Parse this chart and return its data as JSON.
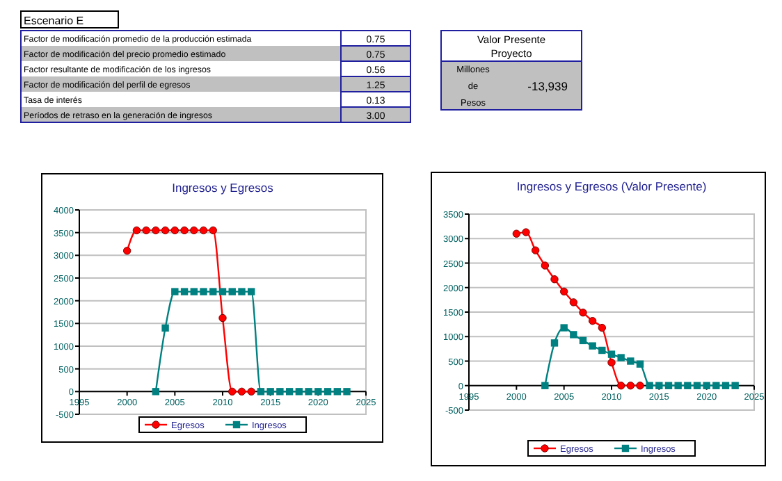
{
  "chart_data": [
    {
      "type": "other",
      "title": "Escenario E",
      "annotations": [
        "Factor de modificación promedio de la producción estimada",
        "0.75",
        "Factor de modificación del precio promedio estimado",
        "0.75",
        "Factor resultante de modificación de los ingresos",
        "0.56",
        "Factor de modificación del perfil de egresos",
        "1.25",
        "Tasa de interés",
        "0.13",
        "Períodos de retraso en la generación de ingresos",
        "3.00",
        "Valor Presente Proyecto",
        "Millones de Pesos",
        "-13,939"
      ]
    },
    {
      "type": "line",
      "title": "Ingresos y Egresos",
      "xlim": [
        1995,
        2025
      ],
      "xticks": [
        1995,
        2000,
        2005,
        2010,
        2015,
        2020,
        2025
      ],
      "ylim": [
        -500,
        4000
      ],
      "yticks": [
        -500,
        0,
        500,
        1000,
        1500,
        2000,
        2500,
        3000,
        3500,
        4000
      ],
      "grid": "y",
      "legend": "bottom",
      "series": [
        {
          "name": "Egresos",
          "color": "#ff0000",
          "marker": "circle",
          "x": [
            2000,
            2001,
            2002,
            2003,
            2004,
            2005,
            2006,
            2007,
            2008,
            2009,
            2010,
            2011,
            2012,
            2013
          ],
          "values": [
            3100,
            3550,
            3550,
            3550,
            3550,
            3550,
            3550,
            3550,
            3550,
            3550,
            1620,
            0,
            0,
            0
          ]
        },
        {
          "name": "Ingresos",
          "color": "#008080",
          "marker": "square",
          "x": [
            2003,
            2004,
            2005,
            2006,
            2007,
            2008,
            2009,
            2010,
            2011,
            2012,
            2013,
            2014,
            2015,
            2016,
            2017,
            2018,
            2019,
            2020,
            2021,
            2022,
            2023
          ],
          "values": [
            0,
            1400,
            2200,
            2200,
            2200,
            2200,
            2200,
            2200,
            2200,
            2200,
            2200,
            0,
            0,
            0,
            0,
            0,
            0,
            0,
            0,
            0,
            0
          ]
        }
      ]
    },
    {
      "type": "line",
      "title": "Ingresos y Egresos (Valor Presente)",
      "xlim": [
        1995,
        2025
      ],
      "xticks": [
        1995,
        2000,
        2005,
        2010,
        2015,
        2020,
        2025
      ],
      "ylim": [
        -500,
        3500
      ],
      "yticks": [
        -500,
        0,
        500,
        1000,
        1500,
        2000,
        2500,
        3000,
        3500
      ],
      "grid": "y",
      "legend": "bottom",
      "series": [
        {
          "name": "Egresos",
          "color": "#ff0000",
          "marker": "circle",
          "x": [
            2000,
            2001,
            2002,
            2003,
            2004,
            2005,
            2006,
            2007,
            2008,
            2009,
            2010,
            2011,
            2012,
            2013
          ],
          "values": [
            3100,
            3130,
            2760,
            2450,
            2170,
            1920,
            1700,
            1490,
            1320,
            1180,
            470,
            0,
            0,
            0
          ]
        },
        {
          "name": "Ingresos",
          "color": "#008080",
          "marker": "square",
          "x": [
            2003,
            2004,
            2005,
            2006,
            2007,
            2008,
            2009,
            2010,
            2011,
            2012,
            2013,
            2014,
            2015,
            2016,
            2017,
            2018,
            2019,
            2020,
            2021,
            2022,
            2023
          ],
          "values": [
            0,
            870,
            1180,
            1040,
            920,
            810,
            720,
            640,
            570,
            500,
            440,
            0,
            0,
            0,
            0,
            0,
            0,
            0,
            0,
            0,
            0
          ]
        }
      ]
    }
  ]
}
